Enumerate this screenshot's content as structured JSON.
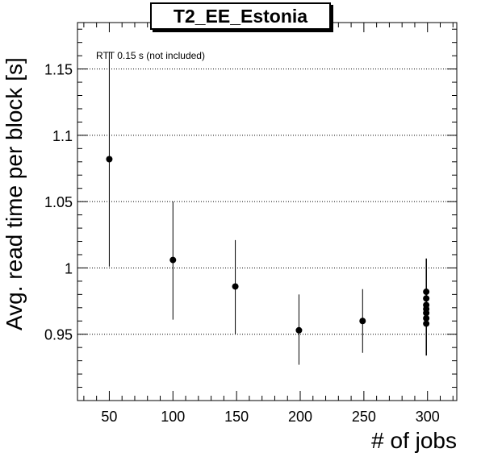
{
  "chart_data": {
    "type": "scatter",
    "title": "T2_EE_Estonia",
    "xlabel": "# of jobs",
    "ylabel": "Avg. read time per block [s]",
    "annotation": "RTT 0.15 s (not included)",
    "xlim": [
      25,
      323
    ],
    "ylim": [
      0.9,
      1.185
    ],
    "x_ticks": [
      50,
      100,
      150,
      200,
      250,
      300
    ],
    "x_tick_labels": [
      "50",
      "100",
      "150",
      "200",
      "250",
      "300"
    ],
    "y_ticks": [
      0.95,
      1.0,
      1.05,
      1.1,
      1.15
    ],
    "y_tick_labels": [
      "0.95",
      "1",
      "1.05",
      "1.1",
      "1.15"
    ],
    "grid": "horizontal-dotted",
    "points": [
      {
        "x": 50,
        "y": 1.082,
        "y_low": 1.001,
        "y_high": 1.163
      },
      {
        "x": 100,
        "y": 1.006,
        "y_low": 0.961,
        "y_high": 1.05
      },
      {
        "x": 149,
        "y": 0.986,
        "y_low": 0.95,
        "y_high": 1.021
      },
      {
        "x": 199,
        "y": 0.953,
        "y_low": 0.927,
        "y_high": 0.98
      },
      {
        "x": 249,
        "y": 0.96,
        "y_low": 0.936,
        "y_high": 0.984
      },
      {
        "x": 299,
        "y": 0.982,
        "y_low": 0.934,
        "y_high": 1.007
      },
      {
        "x": 299,
        "y": 0.977,
        "y_low": 0.934,
        "y_high": 1.007
      },
      {
        "x": 299,
        "y": 0.972,
        "y_low": 0.934,
        "y_high": 1.007
      },
      {
        "x": 299,
        "y": 0.969,
        "y_low": 0.934,
        "y_high": 1.007
      },
      {
        "x": 299,
        "y": 0.966,
        "y_low": 0.934,
        "y_high": 1.007
      },
      {
        "x": 299,
        "y": 0.962,
        "y_low": 0.934,
        "y_high": 1.007
      },
      {
        "x": 299,
        "y": 0.958,
        "y_low": 0.934,
        "y_high": 1.007
      }
    ]
  }
}
